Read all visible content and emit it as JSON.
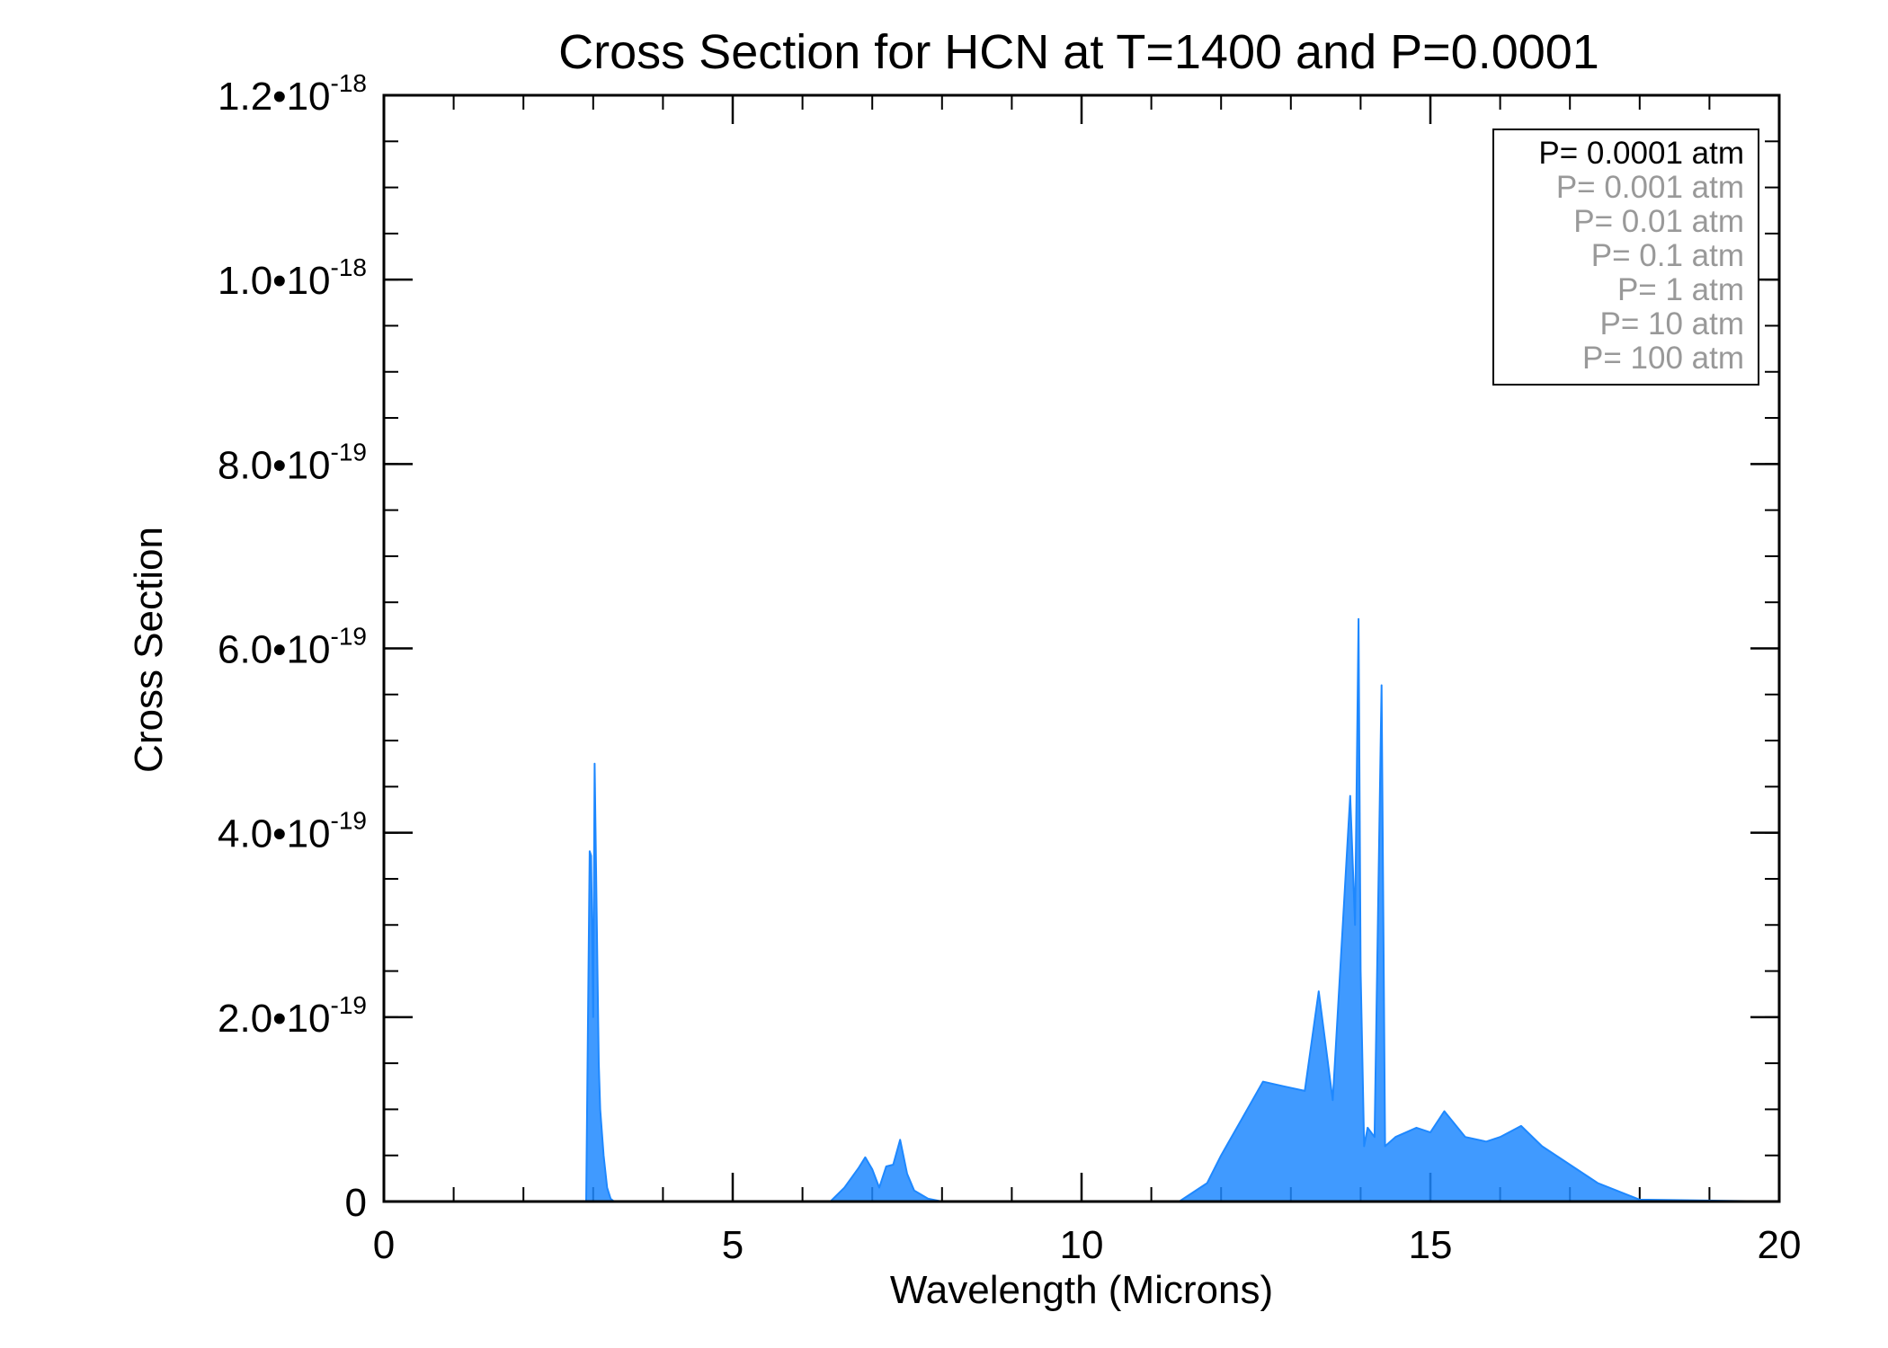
{
  "chart_data": {
    "type": "line",
    "title": "Cross Section for HCN at T=1400 and P=0.0001",
    "xlabel": "Wavelength (Microns)",
    "ylabel": "Cross Section",
    "xlim": [
      0,
      20
    ],
    "ylim": [
      0,
      1.2e-18
    ],
    "x_ticks": [
      0,
      5,
      10,
      15,
      20
    ],
    "x_tick_labels": [
      "0",
      "5",
      "10",
      "15",
      "20"
    ],
    "x_minor_step": 1,
    "y_ticks": [
      {
        "value": 0,
        "label": "0",
        "exponent": ""
      },
      {
        "value": 2e-19,
        "label": "2.0•10",
        "exponent": "-19"
      },
      {
        "value": 4e-19,
        "label": "4.0•10",
        "exponent": "-19"
      },
      {
        "value": 6e-19,
        "label": "6.0•10",
        "exponent": "-19"
      },
      {
        "value": 8e-19,
        "label": "8.0•10",
        "exponent": "-19"
      },
      {
        "value": 1e-18,
        "label": "1.0•10",
        "exponent": "-18"
      },
      {
        "value": 1.2e-18,
        "label": "1.2•10",
        "exponent": "-18"
      }
    ],
    "y_minor_step": 5e-20,
    "grid": false,
    "legend_position": "top-right",
    "legend": [
      {
        "label": "P= 0.0001 atm",
        "color": "#000000"
      },
      {
        "label": "P= 0.001 atm",
        "color": "#999999"
      },
      {
        "label": "P= 0.01 atm",
        "color": "#999999"
      },
      {
        "label": "P= 0.1 atm",
        "color": "#999999"
      },
      {
        "label": "P= 1 atm",
        "color": "#999999"
      },
      {
        "label": "P= 10 atm",
        "color": "#999999"
      },
      {
        "label": "P= 100 atm",
        "color": "#999999"
      }
    ],
    "series": [
      {
        "color": "#1e88ff",
        "x": [
          0.5,
          2.9,
          2.95,
          2.97,
          3.0,
          3.02,
          3.05,
          3.08,
          3.1,
          3.15,
          3.2,
          3.25,
          3.3,
          6.4,
          6.6,
          6.8,
          6.9,
          7.0,
          7.1,
          7.2,
          7.3,
          7.4,
          7.5,
          7.6,
          7.8,
          8.0,
          11.4,
          11.8,
          12.0,
          12.3,
          12.6,
          12.9,
          13.2,
          13.4,
          13.6,
          13.85,
          13.92,
          13.97,
          14.0,
          14.05,
          14.1,
          14.2,
          14.3,
          14.35,
          14.5,
          14.8,
          15.0,
          15.2,
          15.5,
          15.8,
          16.0,
          16.3,
          16.6,
          17.0,
          17.4,
          17.8,
          18.0,
          20.0
        ],
        "y": [
          0,
          0,
          3.8e-19,
          3.75e-19,
          2e-19,
          4.75e-19,
          3.1e-19,
          1.5e-19,
          1e-19,
          5e-20,
          1.5e-20,
          3e-21,
          0,
          0,
          1.5e-20,
          3.6e-20,
          4.8e-20,
          3.5e-20,
          1.5e-20,
          3.8e-20,
          4e-20,
          6.7e-20,
          3e-20,
          1.2e-20,
          3e-21,
          0,
          0,
          2e-20,
          5e-20,
          9e-20,
          1.3e-19,
          1.25e-19,
          1.2e-19,
          2.28e-19,
          1.1e-19,
          4.4e-19,
          3e-19,
          6.32e-19,
          2.5e-19,
          6e-20,
          8e-20,
          7e-20,
          5.6e-19,
          6e-20,
          7e-20,
          8e-20,
          7.5e-20,
          9.8e-20,
          7e-20,
          6.5e-20,
          7e-20,
          8.2e-20,
          6e-20,
          4e-20,
          2e-20,
          8e-21,
          2e-21,
          0
        ]
      }
    ]
  }
}
